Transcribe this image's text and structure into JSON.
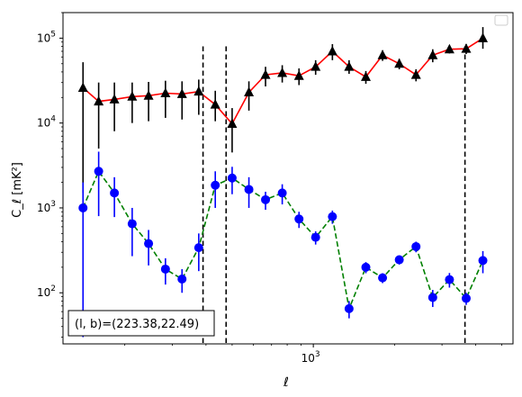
{
  "chart_data": {
    "type": "scatter",
    "xlabel": "ℓ",
    "ylabel": "C_ℓ  [mK²]",
    "xscale": "log",
    "yscale": "log",
    "xlim": [
      118,
      5500
    ],
    "ylim": [
      25,
      200000
    ],
    "x_ticks": [
      1000
    ],
    "x_tick_labels": [
      "10^3"
    ],
    "y_ticks": [
      100,
      1000,
      10000,
      100000
    ],
    "y_tick_labels": [
      "10^2",
      "10^3",
      "10^4",
      "10^5"
    ],
    "legend": "top-right, empty",
    "annotation": "(l, b)=(223.38,22.49)",
    "vlines": [
      390,
      475,
      3650
    ],
    "series": [
      {
        "color": "#ff0000",
        "marker": "triangle",
        "marker_color": "#000000",
        "errorbar_color": "#000000",
        "linestyle": "solid",
        "points": [
          {
            "x": 140,
            "y": 26000,
            "lo": 1500,
            "hi": 52000
          },
          {
            "x": 160,
            "y": 18000,
            "lo": 5000,
            "hi": 30000
          },
          {
            "x": 183,
            "y": 19000,
            "lo": 8000,
            "hi": 30000
          },
          {
            "x": 213,
            "y": 20500,
            "lo": 10000,
            "hi": 30000
          },
          {
            "x": 245,
            "y": 21000,
            "lo": 10500,
            "hi": 30500
          },
          {
            "x": 283,
            "y": 22500,
            "lo": 11500,
            "hi": 31500
          },
          {
            "x": 326,
            "y": 22000,
            "lo": 11000,
            "hi": 31000
          },
          {
            "x": 376,
            "y": 23500,
            "lo": 12500,
            "hi": 32500
          },
          {
            "x": 433,
            "y": 16500,
            "lo": 10500,
            "hi": 24000
          },
          {
            "x": 500,
            "y": 9800,
            "lo": 4500,
            "hi": 15000
          },
          {
            "x": 577,
            "y": 23000,
            "lo": 14000,
            "hi": 31000
          },
          {
            "x": 665,
            "y": 37000,
            "lo": 27000,
            "hi": 46000
          },
          {
            "x": 767,
            "y": 39000,
            "lo": 30000,
            "hi": 48000
          },
          {
            "x": 885,
            "y": 36000,
            "lo": 28000,
            "hi": 44000
          },
          {
            "x": 1020,
            "y": 46000,
            "lo": 37000,
            "hi": 55000
          },
          {
            "x": 1177,
            "y": 70000,
            "lo": 55000,
            "hi": 85000
          },
          {
            "x": 1357,
            "y": 46000,
            "lo": 38000,
            "hi": 55000
          },
          {
            "x": 1566,
            "y": 35000,
            "lo": 29000,
            "hi": 41000
          },
          {
            "x": 1806,
            "y": 63000,
            "lo": 54000,
            "hi": 72000
          },
          {
            "x": 2083,
            "y": 50000,
            "lo": 43000,
            "hi": 57000
          },
          {
            "x": 2403,
            "y": 37000,
            "lo": 31000,
            "hi": 43000
          },
          {
            "x": 2772,
            "y": 63000,
            "lo": 52000,
            "hi": 74000
          },
          {
            "x": 3197,
            "y": 74000,
            "lo": 66000,
            "hi": 82000
          },
          {
            "x": 3688,
            "y": 75000,
            "lo": 65000,
            "hi": 85000
          },
          {
            "x": 4253,
            "y": 100000,
            "lo": 75000,
            "hi": 135000
          }
        ]
      },
      {
        "color": "#008000",
        "marker": "circle",
        "marker_color": "#0000ff",
        "errorbar_color": "#0000ff",
        "linestyle": "dashed",
        "points": [
          {
            "x": 140,
            "y": 1000,
            "lo": 30,
            "hi": 2000
          },
          {
            "x": 160,
            "y": 2700,
            "lo": 800,
            "hi": 4600
          },
          {
            "x": 183,
            "y": 1500,
            "lo": 780,
            "hi": 2300
          },
          {
            "x": 213,
            "y": 650,
            "lo": 270,
            "hi": 1000
          },
          {
            "x": 245,
            "y": 380,
            "lo": 210,
            "hi": 550
          },
          {
            "x": 283,
            "y": 190,
            "lo": 125,
            "hi": 255
          },
          {
            "x": 326,
            "y": 145,
            "lo": 100,
            "hi": 190
          },
          {
            "x": 376,
            "y": 340,
            "lo": 180,
            "hi": 500
          },
          {
            "x": 433,
            "y": 1850,
            "lo": 1000,
            "hi": 2700
          },
          {
            "x": 500,
            "y": 2250,
            "lo": 1450,
            "hi": 3050
          },
          {
            "x": 577,
            "y": 1650,
            "lo": 1000,
            "hi": 2300
          },
          {
            "x": 665,
            "y": 1250,
            "lo": 950,
            "hi": 1550
          },
          {
            "x": 767,
            "y": 1500,
            "lo": 1100,
            "hi": 1900
          },
          {
            "x": 885,
            "y": 740,
            "lo": 580,
            "hi": 900
          },
          {
            "x": 1020,
            "y": 450,
            "lo": 370,
            "hi": 530
          },
          {
            "x": 1177,
            "y": 790,
            "lo": 650,
            "hi": 930
          },
          {
            "x": 1357,
            "y": 65,
            "lo": 50,
            "hi": 80
          },
          {
            "x": 1566,
            "y": 200,
            "lo": 170,
            "hi": 230
          },
          {
            "x": 1806,
            "y": 150,
            "lo": 130,
            "hi": 170
          },
          {
            "x": 2083,
            "y": 245,
            "lo": 215,
            "hi": 275
          },
          {
            "x": 2403,
            "y": 350,
            "lo": 300,
            "hi": 400
          },
          {
            "x": 2772,
            "y": 88,
            "lo": 68,
            "hi": 108
          },
          {
            "x": 3197,
            "y": 143,
            "lo": 115,
            "hi": 171
          },
          {
            "x": 3688,
            "y": 86,
            "lo": 72,
            "hi": 100
          },
          {
            "x": 4253,
            "y": 240,
            "lo": 170,
            "hi": 310
          }
        ]
      }
    ]
  }
}
